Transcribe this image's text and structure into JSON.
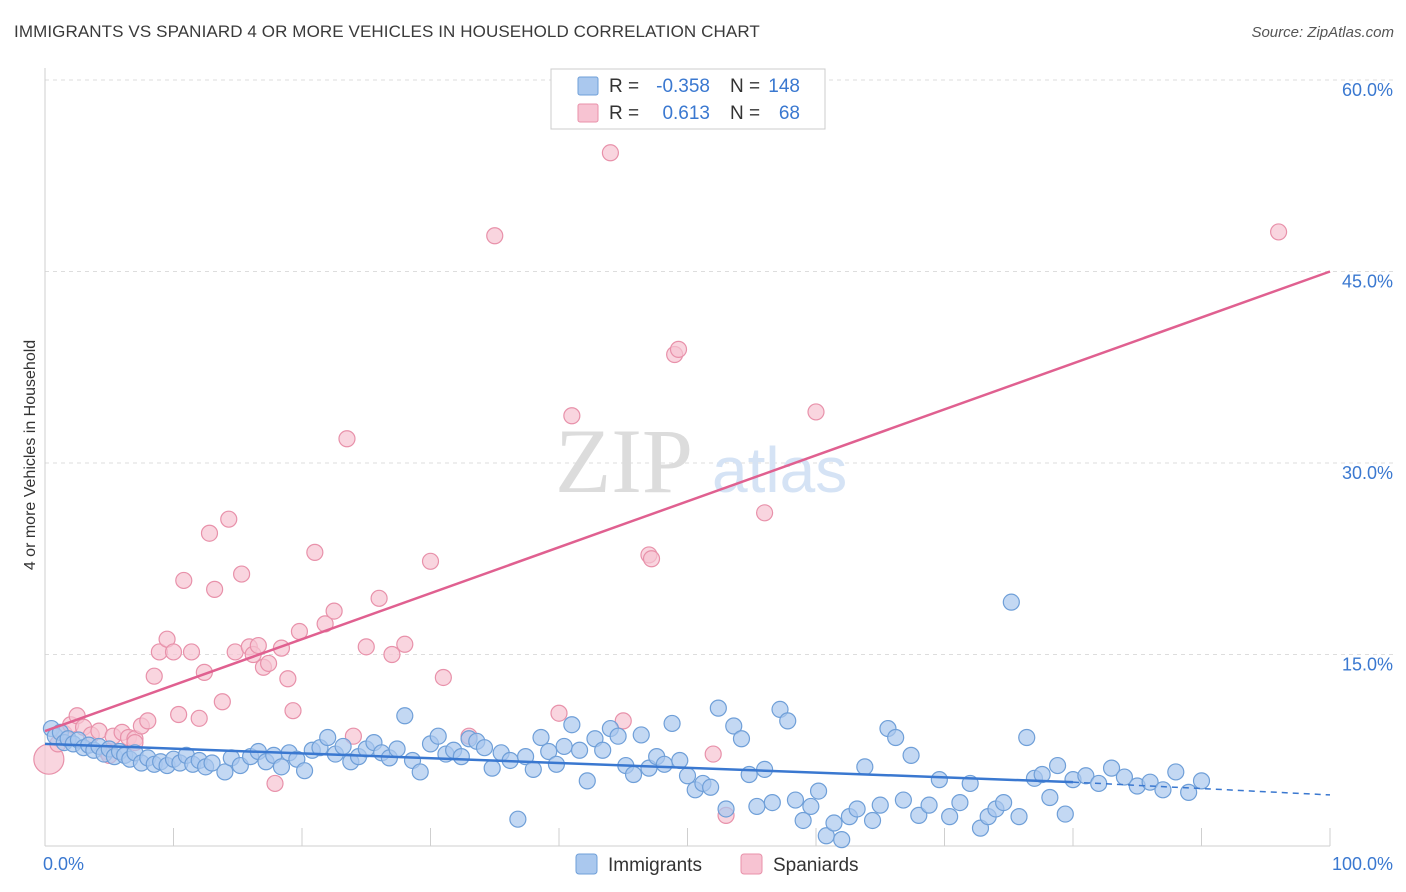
{
  "chart_data": {
    "type": "scatter",
    "title": "IMMIGRANTS VS SPANIARD 4 OR MORE VEHICLES IN HOUSEHOLD CORRELATION CHART",
    "source": "Source: ZipAtlas.com",
    "xlabel": "",
    "ylabel": "4 or more Vehicles in Household",
    "xlim": [
      0,
      100
    ],
    "ylim": [
      0,
      62
    ],
    "x_tick_labels": [
      "0.0%",
      "100.0%"
    ],
    "y_ticks": [
      15,
      30,
      45,
      60
    ],
    "y_tick_labels": [
      "15.0%",
      "30.0%",
      "45.0%",
      "60.0%"
    ],
    "watermark": "ZIPatlas",
    "colors": {
      "immigrants_fill": "#aac8ee",
      "immigrants_stroke": "#6f9fd8",
      "immigrants_line": "#3a78d0",
      "spaniards_fill": "#f7c3d2",
      "spaniards_stroke": "#e891aa",
      "spaniards_line": "#e06090",
      "value_text": "#3a78d0"
    },
    "legend": {
      "rows": [
        {
          "r_label": "R =",
          "r_value": "-0.358",
          "n_label": "N =",
          "n_value": "148"
        },
        {
          "r_label": "R =",
          "r_value": "0.613",
          "n_label": "N =",
          "n_value": "68"
        }
      ]
    },
    "series": [
      {
        "name": "Immigrants",
        "trend": {
          "x0": 0,
          "y0": 8.0,
          "x1": 80,
          "y1": 5.0,
          "dash_to_x": 100,
          "dash_to_y": 4.0
        },
        "points": [
          [
            0.5,
            9.2
          ],
          [
            0.8,
            8.6
          ],
          [
            1.2,
            8.9
          ],
          [
            1.5,
            8.1
          ],
          [
            1.8,
            8.4
          ],
          [
            2.2,
            8.0
          ],
          [
            2.6,
            8.3
          ],
          [
            3.0,
            7.7
          ],
          [
            3.4,
            7.9
          ],
          [
            3.8,
            7.5
          ],
          [
            4.2,
            7.8
          ],
          [
            4.6,
            7.2
          ],
          [
            5.0,
            7.6
          ],
          [
            5.4,
            7.0
          ],
          [
            5.8,
            7.4
          ],
          [
            6.2,
            7.1
          ],
          [
            6.6,
            6.8
          ],
          [
            7.0,
            7.3
          ],
          [
            7.5,
            6.5
          ],
          [
            8.0,
            6.9
          ],
          [
            8.5,
            6.4
          ],
          [
            9.0,
            6.6
          ],
          [
            9.5,
            6.3
          ],
          [
            10.0,
            6.8
          ],
          [
            10.5,
            6.5
          ],
          [
            11.0,
            7.1
          ],
          [
            11.5,
            6.4
          ],
          [
            12.0,
            6.7
          ],
          [
            12.5,
            6.2
          ],
          [
            13.0,
            6.5
          ],
          [
            14.0,
            5.8
          ],
          [
            14.5,
            6.9
          ],
          [
            15.2,
            6.3
          ],
          [
            16.0,
            7.0
          ],
          [
            16.6,
            7.4
          ],
          [
            17.2,
            6.6
          ],
          [
            17.8,
            7.1
          ],
          [
            18.4,
            6.2
          ],
          [
            19.0,
            7.3
          ],
          [
            19.6,
            6.8
          ],
          [
            20.2,
            5.9
          ],
          [
            20.8,
            7.5
          ],
          [
            21.4,
            7.7
          ],
          [
            22.0,
            8.5
          ],
          [
            22.6,
            7.2
          ],
          [
            23.2,
            7.8
          ],
          [
            23.8,
            6.6
          ],
          [
            24.4,
            7.0
          ],
          [
            25.0,
            7.6
          ],
          [
            25.6,
            8.1
          ],
          [
            26.2,
            7.3
          ],
          [
            26.8,
            6.9
          ],
          [
            27.4,
            7.6
          ],
          [
            28.0,
            10.2
          ],
          [
            28.6,
            6.7
          ],
          [
            29.2,
            5.8
          ],
          [
            30.0,
            8.0
          ],
          [
            30.6,
            8.6
          ],
          [
            31.2,
            7.2
          ],
          [
            31.8,
            7.5
          ],
          [
            32.4,
            7.0
          ],
          [
            33.0,
            8.4
          ],
          [
            33.6,
            8.2
          ],
          [
            34.2,
            7.7
          ],
          [
            34.8,
            6.1
          ],
          [
            35.5,
            7.3
          ],
          [
            36.2,
            6.7
          ],
          [
            36.8,
            2.1
          ],
          [
            37.4,
            7.0
          ],
          [
            38.0,
            6.0
          ],
          [
            38.6,
            8.5
          ],
          [
            39.2,
            7.4
          ],
          [
            39.8,
            6.4
          ],
          [
            40.4,
            7.8
          ],
          [
            41.0,
            9.5
          ],
          [
            41.6,
            7.5
          ],
          [
            42.2,
            5.1
          ],
          [
            42.8,
            8.4
          ],
          [
            43.4,
            7.5
          ],
          [
            44.0,
            9.2
          ],
          [
            44.6,
            8.6
          ],
          [
            45.2,
            6.3
          ],
          [
            45.8,
            5.6
          ],
          [
            46.4,
            8.7
          ],
          [
            47.0,
            6.1
          ],
          [
            47.6,
            7.0
          ],
          [
            48.2,
            6.4
          ],
          [
            48.8,
            9.6
          ],
          [
            49.4,
            6.7
          ],
          [
            50.0,
            5.5
          ],
          [
            50.6,
            4.4
          ],
          [
            51.2,
            4.9
          ],
          [
            51.8,
            4.6
          ],
          [
            52.4,
            10.8
          ],
          [
            53.0,
            2.9
          ],
          [
            53.6,
            9.4
          ],
          [
            54.2,
            8.4
          ],
          [
            54.8,
            5.6
          ],
          [
            55.4,
            3.1
          ],
          [
            56.0,
            6.0
          ],
          [
            56.6,
            3.4
          ],
          [
            57.2,
            10.7
          ],
          [
            57.8,
            9.8
          ],
          [
            58.4,
            3.6
          ],
          [
            59.0,
            2.0
          ],
          [
            59.6,
            3.1
          ],
          [
            60.2,
            4.3
          ],
          [
            60.8,
            0.8
          ],
          [
            61.4,
            1.8
          ],
          [
            62.0,
            0.5
          ],
          [
            62.6,
            2.3
          ],
          [
            63.2,
            2.9
          ],
          [
            63.8,
            6.2
          ],
          [
            64.4,
            2.0
          ],
          [
            65.0,
            3.2
          ],
          [
            65.6,
            9.2
          ],
          [
            66.2,
            8.5
          ],
          [
            66.8,
            3.6
          ],
          [
            67.4,
            7.1
          ],
          [
            68.0,
            2.4
          ],
          [
            68.8,
            3.2
          ],
          [
            69.6,
            5.2
          ],
          [
            70.4,
            2.3
          ],
          [
            71.2,
            3.4
          ],
          [
            72.0,
            4.9
          ],
          [
            72.8,
            1.4
          ],
          [
            73.4,
            2.3
          ],
          [
            74.0,
            2.9
          ],
          [
            74.6,
            3.4
          ],
          [
            75.2,
            19.1
          ],
          [
            75.8,
            2.3
          ],
          [
            76.4,
            8.5
          ],
          [
            77.0,
            5.3
          ],
          [
            77.6,
            5.6
          ],
          [
            78.2,
            3.8
          ],
          [
            78.8,
            6.3
          ],
          [
            79.4,
            2.5
          ],
          [
            80.0,
            5.2
          ],
          [
            81.0,
            5.5
          ],
          [
            82.0,
            4.9
          ],
          [
            83.0,
            6.1
          ],
          [
            84.0,
            5.4
          ],
          [
            85.0,
            4.7
          ],
          [
            86.0,
            5.0
          ],
          [
            87.0,
            4.4
          ],
          [
            88.0,
            5.8
          ],
          [
            89.0,
            4.2
          ],
          [
            90.0,
            5.1
          ]
        ]
      },
      {
        "name": "Spaniards",
        "trend": {
          "x0": 0,
          "y0": 9.0,
          "x1": 100,
          "y1": 45.0
        },
        "points": [
          [
            0.3,
            6.8
          ],
          [
            1.0,
            8.0
          ],
          [
            1.5,
            8.8
          ],
          [
            2.0,
            9.5
          ],
          [
            2.5,
            10.2
          ],
          [
            3.0,
            9.3
          ],
          [
            3.6,
            8.7
          ],
          [
            4.2,
            9.0
          ],
          [
            4.8,
            7.4
          ],
          [
            5.3,
            8.6
          ],
          [
            6.0,
            8.9
          ],
          [
            6.5,
            8.5
          ],
          [
            7.0,
            8.4
          ],
          [
            7.5,
            9.4
          ],
          [
            8.0,
            9.8
          ],
          [
            8.5,
            13.3
          ],
          [
            8.9,
            15.2
          ],
          [
            9.5,
            16.2
          ],
          [
            10.0,
            15.2
          ],
          [
            10.4,
            10.3
          ],
          [
            10.8,
            20.8
          ],
          [
            11.4,
            15.2
          ],
          [
            12.0,
            10.0
          ],
          [
            12.4,
            13.6
          ],
          [
            12.8,
            24.5
          ],
          [
            13.2,
            20.1
          ],
          [
            13.8,
            11.3
          ],
          [
            14.3,
            25.6
          ],
          [
            14.8,
            15.2
          ],
          [
            15.3,
            21.3
          ],
          [
            15.9,
            15.6
          ],
          [
            16.2,
            15.0
          ],
          [
            16.6,
            15.7
          ],
          [
            17.0,
            14.0
          ],
          [
            17.4,
            14.3
          ],
          [
            17.9,
            4.9
          ],
          [
            18.4,
            15.5
          ],
          [
            18.9,
            13.1
          ],
          [
            19.3,
            10.6
          ],
          [
            19.8,
            16.8
          ],
          [
            21.0,
            23.0
          ],
          [
            21.8,
            17.4
          ],
          [
            22.5,
            18.4
          ],
          [
            23.5,
            31.9
          ],
          [
            24.0,
            8.6
          ],
          [
            25.0,
            15.6
          ],
          [
            26.0,
            19.4
          ],
          [
            27.0,
            15.0
          ],
          [
            28.0,
            15.8
          ],
          [
            30.0,
            22.3
          ],
          [
            31.0,
            13.2
          ],
          [
            33.0,
            8.6
          ],
          [
            35.0,
            47.8
          ],
          [
            40.0,
            10.4
          ],
          [
            41.0,
            33.7
          ],
          [
            44.0,
            54.3
          ],
          [
            45.0,
            9.8
          ],
          [
            47.0,
            22.8
          ],
          [
            47.2,
            22.5
          ],
          [
            49.0,
            38.5
          ],
          [
            49.3,
            38.9
          ],
          [
            52.0,
            7.2
          ],
          [
            53.0,
            2.4
          ],
          [
            56.0,
            26.1
          ],
          [
            60.0,
            34.0
          ],
          [
            96.0,
            48.1
          ],
          [
            7.0,
            8.1
          ],
          [
            5.0,
            7.1
          ]
        ]
      }
    ]
  }
}
